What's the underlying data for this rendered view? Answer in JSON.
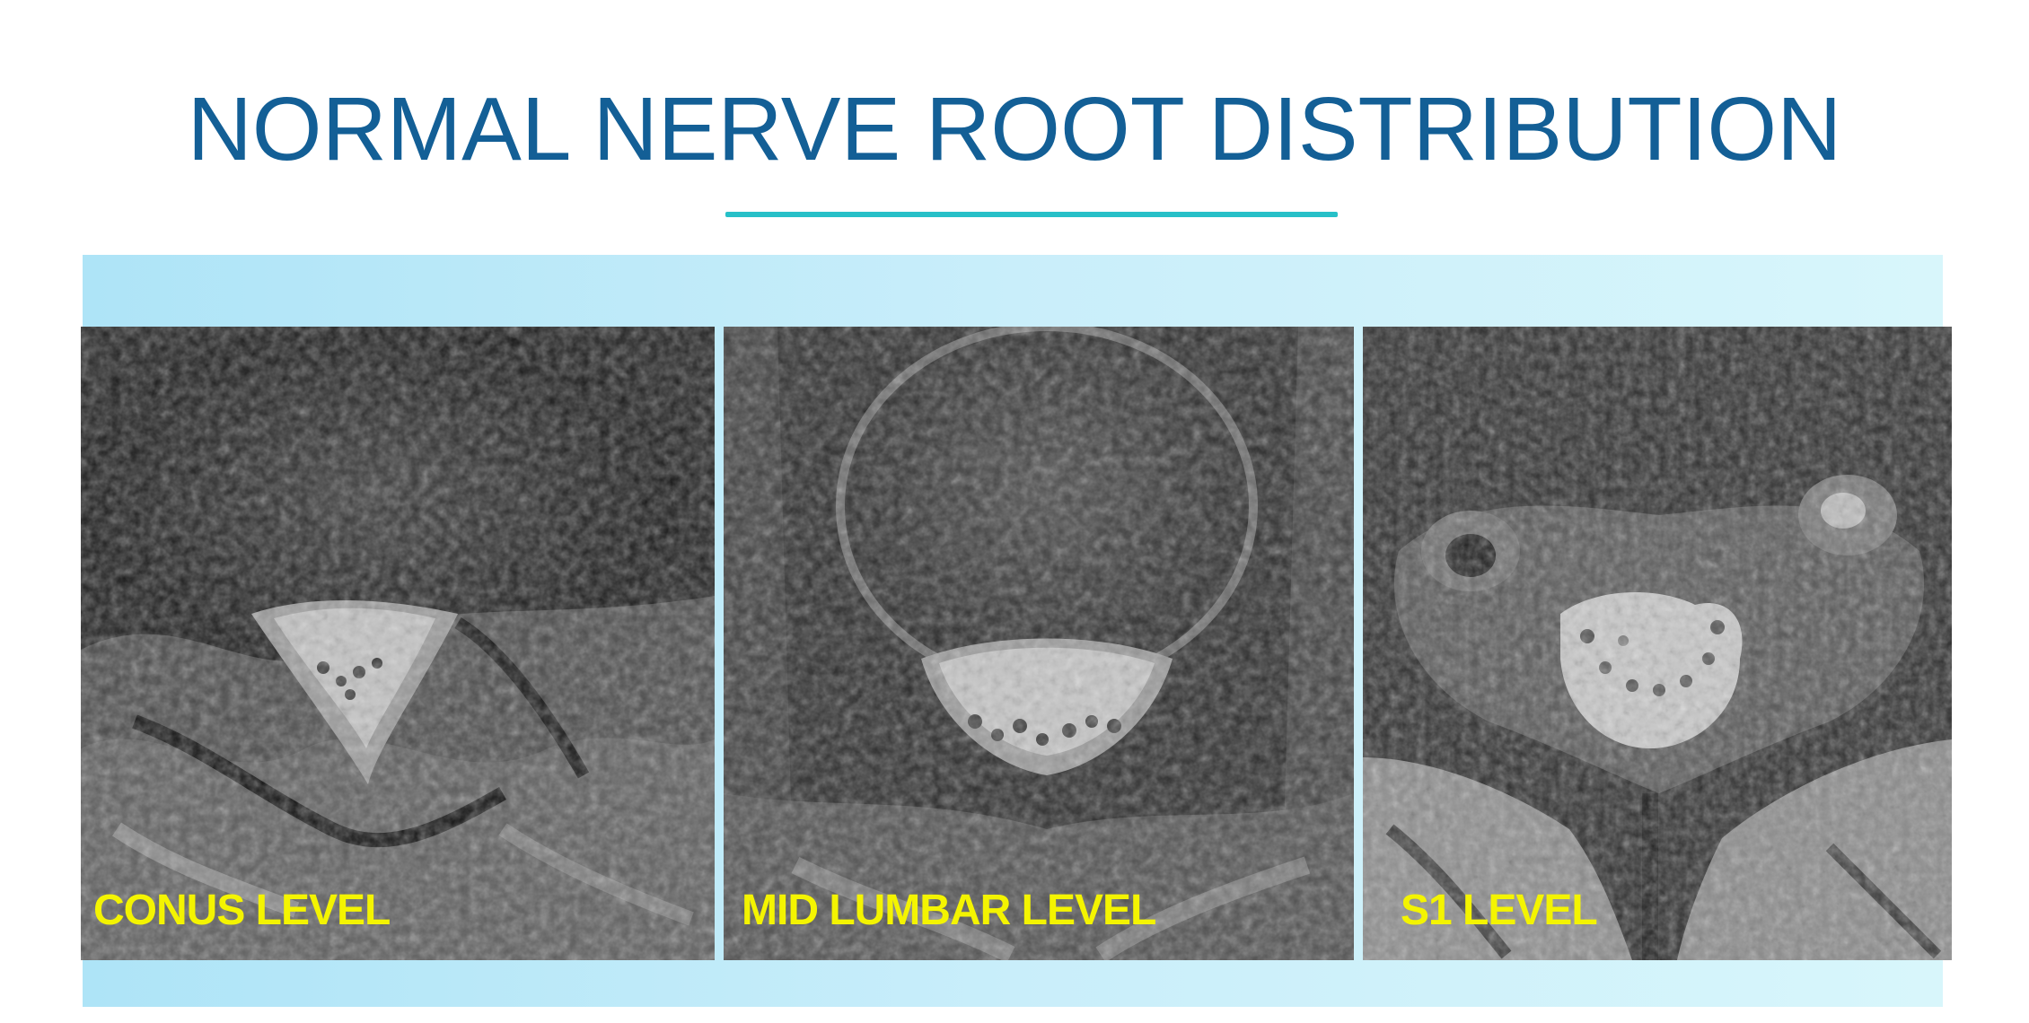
{
  "slide": {
    "title": "NORMAL NERVE ROOT DISTRIBUTION",
    "colors": {
      "title": "#135f96",
      "rule": "#27c0c8",
      "label": "#f4f400",
      "band_start": "#aee4f7",
      "band_end": "#d8f6fb"
    }
  },
  "images": [
    {
      "label": "CONUS LEVEL"
    },
    {
      "label": "MID LUMBAR LEVEL"
    },
    {
      "label": "S1 LEVEL"
    }
  ]
}
